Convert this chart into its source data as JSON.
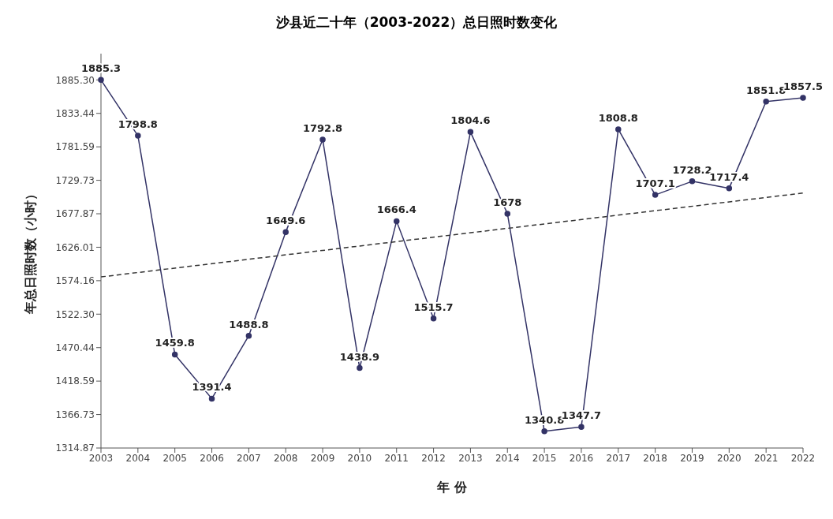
{
  "chart_data": {
    "type": "line",
    "title": "沙县近二十年（2003-2022）总日照时数变化",
    "xlabel": "年 份",
    "ylabel": "年总日照时数（小时）",
    "categories": [
      "2003",
      "2004",
      "2005",
      "2006",
      "2007",
      "2008",
      "2009",
      "2010",
      "2011",
      "2012",
      "2013",
      "2014",
      "2015",
      "2016",
      "2017",
      "2018",
      "2019",
      "2020",
      "2021",
      "2022"
    ],
    "series": [
      {
        "color": "#333366",
        "values": [
          1885.3,
          1798.8,
          1459.8,
          1391.4,
          1488.8,
          1649.6,
          1792.8,
          1438.9,
          1666.4,
          1515.7,
          1804.6,
          1678,
          1340.8,
          1347.7,
          1808.8,
          1707.1,
          1728.2,
          1717.4,
          1851.8,
          1857.5
        ],
        "value_labels": [
          "1885.3",
          "1798.8",
          "1459.8",
          "1391.4",
          "1488.8",
          "1649.6",
          "1792.8",
          "1438.9",
          "1666.4",
          "1515.7",
          "1804.6",
          "1678",
          "1340.8",
          "1347.7",
          "1808.8",
          "1707.1",
          "1728.2",
          "1717.4",
          "1851.8",
          "1857.5"
        ]
      },
      {
        "type": "line",
        "color": "#333333",
        "line_style": "dashed",
        "marker": "none",
        "values": [
          1580,
          null,
          null,
          null,
          null,
          null,
          null,
          null,
          null,
          null,
          null,
          null,
          null,
          null,
          null,
          null,
          null,
          null,
          null,
          1710
        ]
      }
    ],
    "ylim": [
      1314.87,
      1926
    ],
    "yticks": [
      {
        "value": 1314.87,
        "label": "1314.87"
      },
      {
        "value": 1366.73,
        "label": "1366.73"
      },
      {
        "value": 1418.59,
        "label": "1418.59"
      },
      {
        "value": 1470.44,
        "label": "1470.44"
      },
      {
        "value": 1522.3,
        "label": "1522.30"
      },
      {
        "value": 1574.16,
        "label": "1574.16"
      },
      {
        "value": 1626.01,
        "label": "1626.01"
      },
      {
        "value": 1677.87,
        "label": "1677.87"
      },
      {
        "value": 1729.73,
        "label": "1729.73"
      },
      {
        "value": 1781.59,
        "label": "1781.59"
      },
      {
        "value": 1833.44,
        "label": "1833.44"
      },
      {
        "value": 1885.3,
        "label": "1885.30"
      }
    ],
    "marker": "circle",
    "line_style": "solid",
    "grid": false,
    "legend": false
  }
}
